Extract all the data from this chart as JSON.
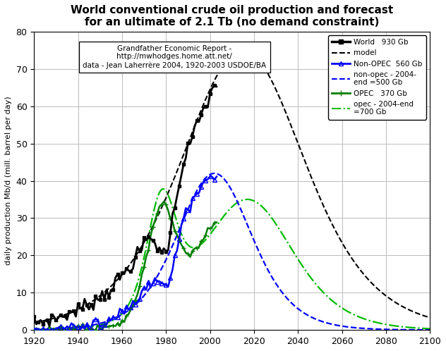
{
  "title": "World conventional crude oil production and forecast\nfor an ultimate of 2.1 Tb (no demand constraint)",
  "ylabel": "daily production Mb/d (mill. barrel per day)",
  "source_text": "Grandfather Economic Report -\nhttp://mwhodges.home.att.net/\ndata - Jean Laherrère 2004, 1920-2003 USDOE/BA",
  "xlim": [
    1920,
    2100
  ],
  "ylim": [
    0,
    80
  ],
  "xticks": [
    1920,
    1940,
    1960,
    1980,
    2000,
    2020,
    2040,
    2060,
    2080,
    2100
  ],
  "yticks": [
    0,
    10,
    20,
    30,
    40,
    50,
    60,
    70,
    80
  ],
  "bg_color": "#ffffff",
  "world_color": "#000000",
  "nonopec_color": "#0000ff",
  "opec_color": "#008000",
  "opec_forecast_color": "#00bb00",
  "title_fontsize": 11,
  "axis_fontsize": 8,
  "tick_fontsize": 9,
  "legend_fontsize": 7.5,
  "source_fontsize": 7.5
}
